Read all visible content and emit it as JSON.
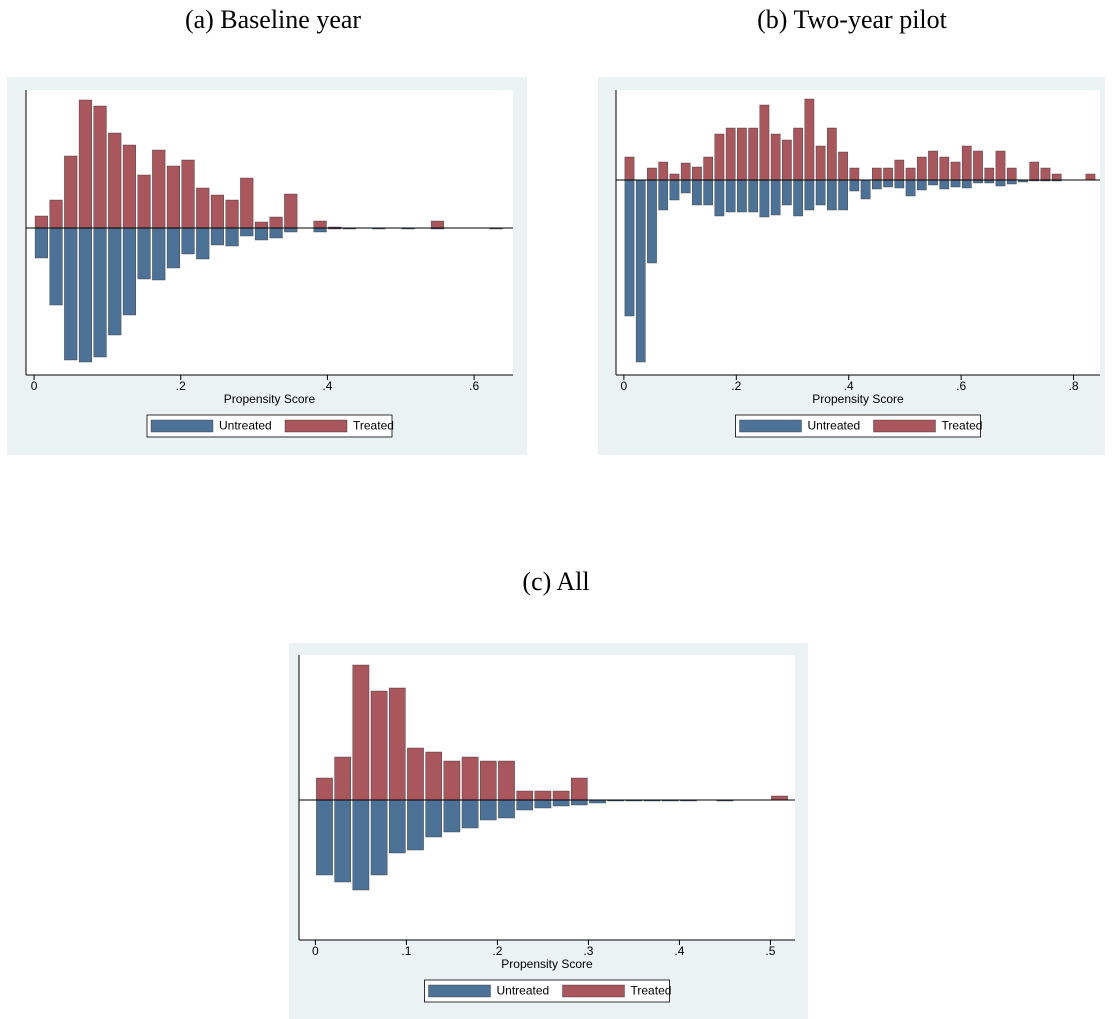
{
  "chart_data": [
    {
      "type": "mirrored-histogram",
      "title": "(a)  Baseline year",
      "xlabel": "Propensity Score",
      "bins": [
        0,
        0.02,
        0.04,
        0.06,
        0.08,
        0.1,
        0.12,
        0.14,
        0.16,
        0.18,
        0.2,
        0.22,
        0.24,
        0.26,
        0.28,
        0.3,
        0.32,
        0.34,
        0.36,
        0.38,
        0.4,
        0.42,
        0.44,
        0.46,
        0.48,
        0.5,
        0.52,
        0.54,
        0.56,
        0.58,
        0.6,
        0.62,
        0.64
      ],
      "series": [
        {
          "name": "Untreated",
          "color": "#4d7298",
          "values": [
            -30,
            -77,
            -132,
            -134,
            -129,
            -107,
            -87,
            -51,
            -52,
            -40,
            -26,
            -31,
            -17,
            -18,
            -8,
            -12,
            -10,
            -4,
            0,
            -4,
            -1,
            -1,
            0,
            -1,
            0,
            -1,
            0,
            -1,
            0,
            0,
            0,
            -1
          ]
        },
        {
          "name": "Treated",
          "color": "#a9565c",
          "values": [
            12,
            28,
            72,
            128,
            122,
            95,
            83,
            53,
            78,
            62,
            68,
            40,
            33,
            28,
            50,
            6,
            11,
            34,
            0,
            7,
            1,
            0,
            0,
            0,
            0,
            0,
            0,
            7,
            0,
            0,
            0,
            0
          ]
        }
      ],
      "xlim": [
        -0.011,
        0.653
      ],
      "xticks": [
        0,
        {
          "value": 0.2,
          "label": ".2"
        },
        {
          "value": 0.4,
          "label": ".4"
        },
        {
          "value": 0.6,
          "label": ".6"
        }
      ],
      "ylim": [
        -147,
        138
      ],
      "legend": "bottom"
    },
    {
      "type": "mirrored-histogram",
      "title": "(b)  Two-year pilot",
      "xlabel": "Propensity Score",
      "bins": [
        0,
        0.02,
        0.04,
        0.06,
        0.08,
        0.1,
        0.12,
        0.14,
        0.16,
        0.18,
        0.2,
        0.22,
        0.24,
        0.26,
        0.28,
        0.3,
        0.32,
        0.34,
        0.36,
        0.38,
        0.4,
        0.42,
        0.44,
        0.46,
        0.48,
        0.5,
        0.52,
        0.54,
        0.56,
        0.58,
        0.6,
        0.62,
        0.64,
        0.66,
        0.68,
        0.7,
        0.72,
        0.74,
        0.76,
        0.78,
        0.8,
        0.82,
        0.84
      ],
      "series": [
        {
          "name": "Untreated",
          "color": "#4d7298",
          "values": [
            -136,
            -182,
            -83,
            -30,
            -20,
            -13,
            -25,
            -25,
            -36,
            -32,
            -32,
            -32,
            -37,
            -35,
            -25,
            -36,
            -30,
            -25,
            -30,
            -30,
            -11,
            -19,
            -9,
            -7,
            -8,
            -16,
            -10,
            -5,
            -9,
            -7,
            -8,
            -3,
            -3,
            -6,
            -4,
            -2,
            -1,
            -1,
            -1,
            0,
            0,
            0
          ]
        },
        {
          "name": "Treated",
          "color": "#a9565c",
          "values": [
            23,
            0,
            12,
            18,
            6,
            17,
            13,
            23,
            46,
            52,
            52,
            52,
            75,
            46,
            40,
            52,
            81,
            34,
            52,
            28,
            12,
            0,
            12,
            12,
            20,
            12,
            23,
            29,
            23,
            18,
            34,
            29,
            12,
            29,
            12,
            0,
            18,
            12,
            6,
            0,
            0,
            6
          ]
        }
      ],
      "xlim": [
        -0.014,
        0.847
      ],
      "xticks": [
        0,
        {
          "value": 0.2,
          "label": ".2"
        },
        {
          "value": 0.4,
          "label": ".4"
        },
        {
          "value": 0.6,
          "label": ".6"
        },
        {
          "value": 0.8,
          "label": ".8"
        }
      ],
      "ylim": [
        -195,
        90
      ],
      "legend": "bottom"
    },
    {
      "type": "mirrored-histogram",
      "title": "(c) All",
      "xlabel": "Propensity Score",
      "bins": [
        0,
        0.02,
        0.04,
        0.06,
        0.08,
        0.1,
        0.12,
        0.14,
        0.16,
        0.18,
        0.2,
        0.22,
        0.24,
        0.26,
        0.28,
        0.3,
        0.32,
        0.34,
        0.36,
        0.38,
        0.4,
        0.42,
        0.44,
        0.46,
        0.48,
        0.5,
        0.52
      ],
      "series": [
        {
          "name": "Untreated",
          "color": "#4d7298",
          "values": [
            -75,
            -82,
            -90,
            -75,
            -53,
            -50,
            -37,
            -32,
            -28,
            -20,
            -18,
            -10,
            -8,
            -6,
            -5,
            -3,
            -1,
            -1,
            -1,
            -1,
            -1,
            0,
            -1,
            0,
            0,
            0
          ]
        },
        {
          "name": "Treated",
          "color": "#a9565c",
          "values": [
            22,
            43,
            135,
            109,
            112,
            52,
            48,
            39,
            43,
            39,
            39,
            9,
            9,
            9,
            22,
            0,
            0,
            0,
            0,
            0,
            0,
            0,
            0,
            0,
            0,
            4
          ]
        }
      ],
      "xlim": [
        -0.018,
        0.527
      ],
      "xticks": [
        0,
        {
          "value": 0.1,
          "label": ".1"
        },
        {
          "value": 0.2,
          "label": ".2"
        },
        {
          "value": 0.3,
          "label": ".3"
        },
        {
          "value": 0.4,
          "label": ".4"
        },
        {
          "value": 0.5,
          "label": ".5"
        }
      ],
      "ylim": [
        -140,
        145
      ],
      "legend": "bottom"
    }
  ]
}
